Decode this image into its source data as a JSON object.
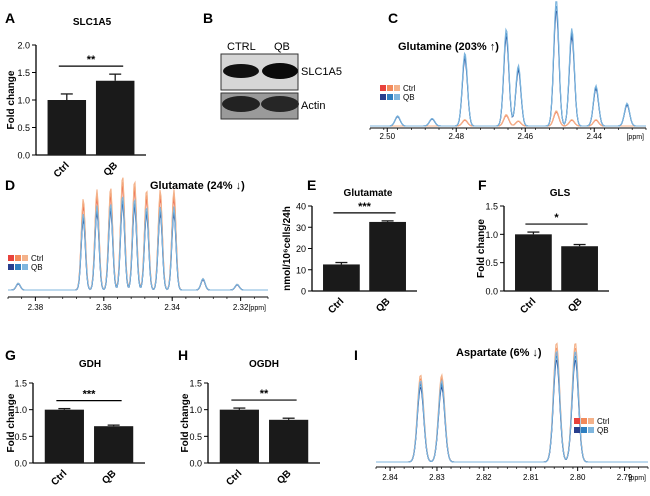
{
  "palette": {
    "ctrl": [
      "#e8423c",
      "#f28a5a",
      "#f4b28a"
    ],
    "qb": [
      "#283f8e",
      "#2f7fc0",
      "#7fb6de"
    ],
    "bar": "#1a1a1a",
    "axis": "#000000"
  },
  "chart_data": [
    {
      "type": "bar",
      "panel": "A",
      "title": "SLC1A5",
      "ylabel": "Fold change",
      "categories": [
        "Ctrl",
        "QB"
      ],
      "values": [
        1.0,
        1.35
      ],
      "errors": [
        0.11,
        0.12
      ],
      "ylim": [
        0,
        2.0
      ],
      "yticks": [
        "0.0",
        "0.5",
        "1.0",
        "1.5",
        "2.0"
      ],
      "significance": "**"
    },
    {
      "type": "bar",
      "panel": "E",
      "title": "Glutamate",
      "ylabel": "nmol/10⁶cells/24h",
      "categories": [
        "Ctrl",
        "QB"
      ],
      "values": [
        12.5,
        32.5
      ],
      "errors": [
        0.9,
        0.5
      ],
      "ylim": [
        0,
        40
      ],
      "yticks": [
        "0",
        "10",
        "20",
        "30",
        "40"
      ],
      "significance": "***"
    },
    {
      "type": "bar",
      "panel": "F",
      "title": "GLS",
      "ylabel": "Fold change",
      "categories": [
        "Ctrl",
        "QB"
      ],
      "values": [
        1.0,
        0.79
      ],
      "errors": [
        0.04,
        0.03
      ],
      "ylim": [
        0,
        1.5
      ],
      "yticks": [
        "0.0",
        "0.5",
        "1.0",
        "1.5"
      ],
      "significance": "*"
    },
    {
      "type": "bar",
      "panel": "G",
      "title": "GDH",
      "ylabel": "Fold change",
      "categories": [
        "Ctrl",
        "QB"
      ],
      "values": [
        1.0,
        0.69
      ],
      "errors": [
        0.02,
        0.02
      ],
      "ylim": [
        0,
        1.5
      ],
      "yticks": [
        "0.0",
        "0.5",
        "1.0",
        "1.5"
      ],
      "significance": "***"
    },
    {
      "type": "bar",
      "panel": "H",
      "title": "OGDH",
      "ylabel": "Fold change",
      "categories": [
        "Ctrl",
        "QB"
      ],
      "values": [
        1.0,
        0.81
      ],
      "errors": [
        0.03,
        0.03
      ],
      "ylim": [
        0,
        1.5
      ],
      "yticks": [
        "0.0",
        "0.5",
        "1.0",
        "1.5"
      ],
      "significance": "**"
    },
    {
      "type": "line",
      "panel": "C",
      "title": "Glutamine (203% ↑)",
      "xlabel": "[ppm]",
      "xlim": [
        2.505,
        2.425
      ],
      "xticks": [
        2.5,
        2.48,
        2.46,
        2.44
      ],
      "tick_labels": [
        "2.50",
        "2.48",
        "2.46",
        "2.44"
      ],
      "legend": [
        "Ctrl",
        "QB"
      ],
      "peaks": {
        "Ctrl": [
          [
            2.4775,
            0.05
          ],
          [
            2.4655,
            0.09
          ],
          [
            2.462,
            0.04
          ],
          [
            2.451,
            0.12
          ],
          [
            2.4465,
            0.05
          ],
          [
            2.4395,
            0.05
          ]
        ],
        "QB": [
          [
            2.4775,
            0.58
          ],
          [
            2.4655,
            0.77
          ],
          [
            2.462,
            0.48
          ],
          [
            2.451,
            1.0
          ],
          [
            2.4465,
            0.77
          ],
          [
            2.4395,
            0.32
          ],
          [
            2.4305,
            0.18
          ],
          [
            2.497,
            0.08
          ],
          [
            2.487,
            0.06
          ]
        ]
      }
    },
    {
      "type": "line",
      "panel": "D",
      "title": "Glutamate (24% ↓)",
      "xlabel": "[ppm]",
      "xlim": [
        2.388,
        2.312
      ],
      "xticks": [
        2.38,
        2.36,
        2.34,
        2.32
      ],
      "tick_labels": [
        "2.38",
        "2.36",
        "2.34",
        "2.32"
      ],
      "legend": [
        "Ctrl",
        "QB"
      ],
      "peaks": {
        "Ctrl": [
          [
            2.366,
            0.8
          ],
          [
            2.362,
            0.88
          ],
          [
            2.358,
            0.9
          ],
          [
            2.3545,
            1.0
          ],
          [
            2.351,
            0.96
          ],
          [
            2.3475,
            0.88
          ],
          [
            2.3435,
            0.88
          ],
          [
            2.3395,
            0.88
          ],
          [
            2.385,
            0.06
          ],
          [
            2.331,
            0.1
          ],
          [
            2.321,
            0.05
          ]
        ],
        "QB": [
          [
            2.366,
            0.67
          ],
          [
            2.362,
            0.74
          ],
          [
            2.358,
            0.76
          ],
          [
            2.3545,
            0.83
          ],
          [
            2.351,
            0.8
          ],
          [
            2.3475,
            0.73
          ],
          [
            2.3435,
            0.73
          ],
          [
            2.3395,
            0.73
          ],
          [
            2.385,
            0.06
          ],
          [
            2.331,
            0.1
          ],
          [
            2.321,
            0.05
          ]
        ]
      }
    },
    {
      "type": "line",
      "panel": "I",
      "title": "Aspartate (6% ↓)",
      "xlabel": "[ppm]",
      "xlim": [
        2.843,
        2.785
      ],
      "xticks": [
        2.84,
        2.83,
        2.82,
        2.81,
        2.8,
        2.79
      ],
      "tick_labels": [
        "2.84",
        "2.83",
        "2.82",
        "2.81",
        "2.80",
        "2.79"
      ],
      "legend": [
        "Ctrl",
        "QB"
      ],
      "peaks": {
        "Ctrl": [
          [
            2.8335,
            0.73
          ],
          [
            2.829,
            0.73
          ],
          [
            2.8045,
            1.0
          ],
          [
            2.8005,
            1.0
          ]
        ],
        "QB": [
          [
            2.8335,
            0.68
          ],
          [
            2.829,
            0.68
          ],
          [
            2.8045,
            0.93
          ],
          [
            2.8005,
            0.93
          ]
        ]
      }
    }
  ],
  "panels": {
    "A": "A",
    "B": "B",
    "C": "C",
    "D": "D",
    "E": "E",
    "F": "F",
    "G": "G",
    "H": "H",
    "I": "I"
  },
  "blot": {
    "lane_labels": [
      "CTRL",
      "QB"
    ],
    "band_labels": [
      "SLC1A5",
      "Actin"
    ]
  }
}
